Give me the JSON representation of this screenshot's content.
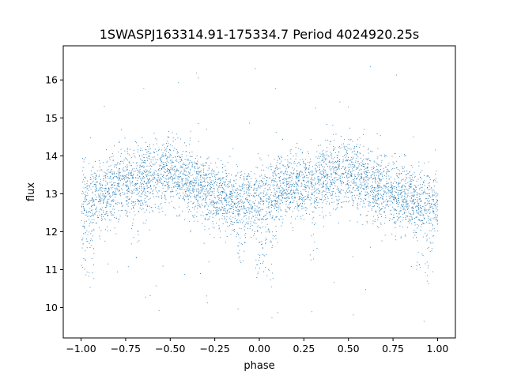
{
  "chart_data": {
    "type": "scatter",
    "title": "1SWASPJ163314.91-175334.7 Period 4024920.25s",
    "xlabel": "phase",
    "ylabel": "flux",
    "xlim": [
      -1.1,
      1.1
    ],
    "ylim": [
      9.2,
      16.9
    ],
    "xticks": [
      -1.0,
      -0.75,
      -0.5,
      -0.25,
      0.0,
      0.25,
      0.5,
      0.75,
      1.0
    ],
    "xtick_labels": [
      "−1.00",
      "−0.75",
      "−0.50",
      "−0.25",
      "0.00",
      "0.25",
      "0.50",
      "0.75",
      "1.00"
    ],
    "yticks": [
      10,
      11,
      12,
      13,
      14,
      15,
      16
    ],
    "ytick_labels": [
      "10",
      "11",
      "12",
      "13",
      "14",
      "15",
      "16"
    ],
    "grid": false,
    "marker_color": "#1f77b4",
    "series": [
      {
        "name": "",
        "profile": {
          "phase": [
            -1.0,
            -0.9,
            -0.75,
            -0.6,
            -0.5,
            -0.4,
            -0.25,
            -0.1,
            0.0,
            0.1,
            0.25,
            0.4,
            0.5,
            0.6,
            0.75,
            0.9,
            1.0
          ],
          "flux": [
            12.8,
            13.0,
            13.3,
            13.5,
            13.6,
            13.3,
            13.0,
            12.8,
            12.8,
            13.0,
            13.3,
            13.5,
            13.6,
            13.3,
            13.0,
            12.8,
            12.8
          ]
        },
        "scatter_sigma": 0.45,
        "range_observed": [
          9.5,
          16.5
        ],
        "dip_features": [
          {
            "phase": -1.0,
            "flux_min": 11.0
          },
          {
            "phase": -0.95,
            "flux_min": 10.5
          },
          {
            "phase": -0.7,
            "flux_min": 11.2
          },
          {
            "phase": -0.1,
            "flux_min": 11.2
          },
          {
            "phase": 0.0,
            "flux_min": 10.8
          },
          {
            "phase": 0.05,
            "flux_min": 10.5
          },
          {
            "phase": 0.3,
            "flux_min": 11.2
          },
          {
            "phase": 0.9,
            "flux_min": 11.0
          },
          {
            "phase": 0.95,
            "flux_min": 10.5
          }
        ]
      }
    ]
  }
}
